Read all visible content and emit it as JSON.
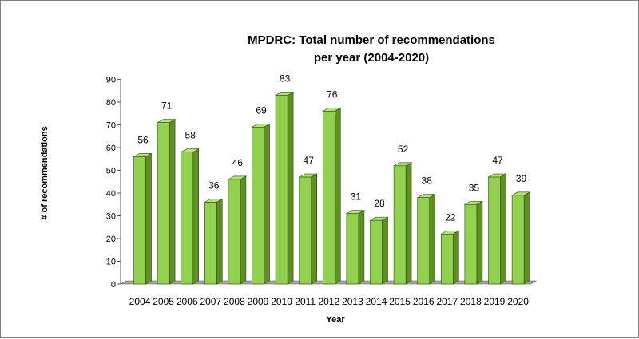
{
  "chart_data": {
    "type": "bar",
    "title_line1": "MPDRC: Total number of recommendations",
    "title_line2": "per year (2004-2020)",
    "xlabel": "Year",
    "ylabel": "# of recommendations",
    "ylim": [
      0,
      90
    ],
    "yticks": [
      "0",
      "10",
      "20",
      "30",
      "40",
      "50",
      "60",
      "70",
      "80",
      "90"
    ],
    "categories": [
      "2004",
      "2005",
      "2006",
      "2007",
      "2008",
      "2009",
      "2010",
      "2011",
      "2012",
      "2013",
      "2014",
      "2015",
      "2016",
      "2017",
      "2018",
      "2019",
      "2020"
    ],
    "values": [
      56,
      71,
      58,
      36,
      46,
      69,
      83,
      47,
      76,
      31,
      28,
      52,
      38,
      22,
      35,
      47,
      39
    ],
    "value_labels": [
      "56",
      "71",
      "58",
      "36",
      "46",
      "69",
      "83",
      "47",
      "76",
      "31",
      "28",
      "52",
      "38",
      "22",
      "35",
      "47",
      "39"
    ],
    "grid": false,
    "legend": "none",
    "bar_color": "#92d050",
    "bar_side_color": "#5e8f22",
    "bar_top_color": "#b5e07a",
    "floor_color": "#a6a6a6"
  }
}
